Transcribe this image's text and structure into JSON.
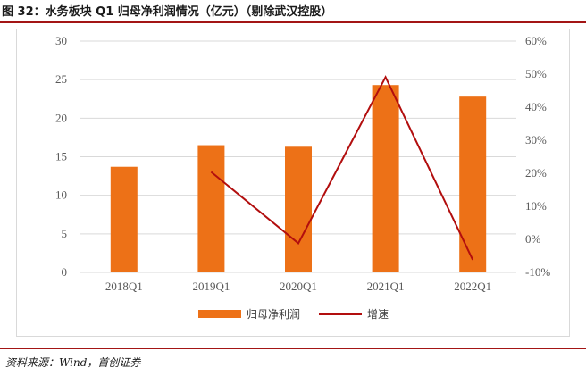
{
  "figure": {
    "title": "图 32：水务板块 Q1 归母净利润情况（亿元）（剔除武汉控股）",
    "source": "资料来源：Wind，首创证券"
  },
  "colors": {
    "bar": "#ED7117",
    "line": "#B20E0E",
    "rule": "#A31515",
    "grid": "#D9D9D9"
  },
  "chart_data": {
    "type": "bar",
    "title": "水务板块 Q1 归母净利润情况（亿元）（剔除武汉控股）",
    "categories": [
      "2018Q1",
      "2019Q1",
      "2020Q1",
      "2021Q1",
      "2022Q1"
    ],
    "series": [
      {
        "name": "归母净利润",
        "type": "bar",
        "axis": "left",
        "values": [
          13.7,
          16.5,
          16.3,
          24.3,
          22.8
        ]
      },
      {
        "name": "增速",
        "type": "line",
        "axis": "right",
        "values": [
          null,
          20.4,
          -1.2,
          49.1,
          -6.2
        ]
      }
    ],
    "left_axis": {
      "min": 0,
      "max": 30,
      "ticks": [
        0,
        5,
        10,
        15,
        20,
        25,
        30
      ],
      "tick_labels": [
        "0",
        "5",
        "10",
        "15",
        "20",
        "25",
        "30"
      ]
    },
    "right_axis": {
      "min": -10,
      "max": 60,
      "ticks": [
        -10,
        0,
        10,
        20,
        30,
        40,
        50,
        60
      ],
      "tick_labels": [
        "-10%",
        "0%",
        "10%",
        "20%",
        "30%",
        "40%",
        "50%",
        "60%"
      ]
    },
    "legend_position": "bottom",
    "grid": true
  }
}
